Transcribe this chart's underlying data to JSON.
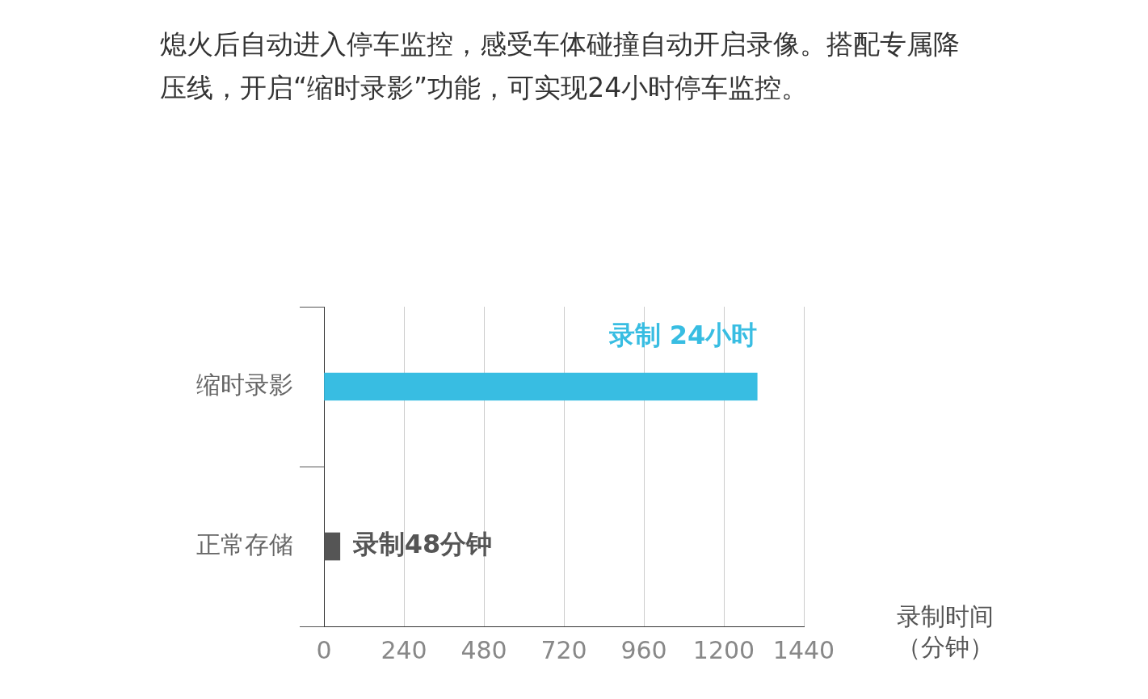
{
  "chart_data": {
    "type": "bar",
    "orientation": "horizontal",
    "title": "熄火后自动进入停车监控，感受车体碰撞自动开启录像。搭配专属降压线，开启“缩时录影”功能，可实现24小时停车监控。",
    "categories": [
      "缩时录影",
      "正常存储"
    ],
    "values": [
      1300,
      48
    ],
    "colors": [
      "#38bde2",
      "#555555"
    ],
    "xlabel": "录制时间（分钟）",
    "xlim": [
      0,
      1440
    ],
    "xticks": [
      0,
      240,
      480,
      720,
      960,
      1200,
      1440
    ],
    "grid": "x",
    "legend": false,
    "annotations": [
      "录制 24小时",
      "录制48分钟"
    ]
  }
}
